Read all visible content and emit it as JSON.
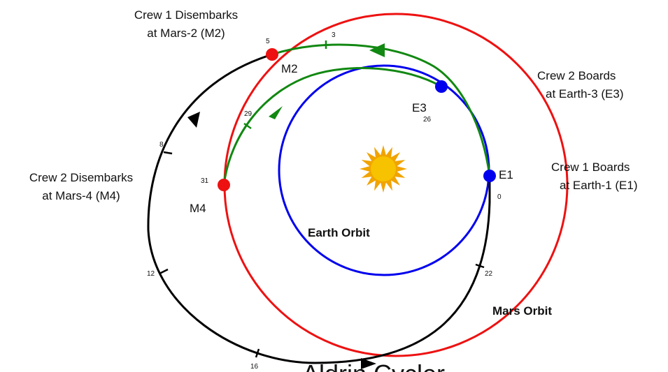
{
  "colors": {
    "earth": "#0000ee",
    "mars": "#ee1111",
    "cycler": "#000000",
    "taxi": "#118811",
    "sun_core": "#f7c200",
    "sun_rays": "#f0a400"
  },
  "orbits": {
    "earth_label": "Earth Orbit",
    "mars_label": "Mars Orbit"
  },
  "nodes": {
    "e1": "E1",
    "e3": "E3",
    "m2": "M2",
    "m4": "M4"
  },
  "captions": {
    "crew1_boards": [
      "Crew 1 Boards",
      "at Earth-1 (E1)"
    ],
    "crew2_boards": [
      "Crew 2 Boards",
      "at Earth-3 (E3)"
    ],
    "crew1_disembarks": [
      "Crew 1 Disembarks",
      "at Mars-2 (M2)"
    ],
    "crew2_disembarks": [
      "Crew 2 Disembarks",
      "at Mars-4 (M4)"
    ]
  },
  "tick_labels": {
    "t0": "0",
    "t3": "3",
    "t5": "5",
    "t8": "8",
    "t12": "12",
    "t16": "16",
    "t22": "22",
    "t26": "26",
    "t29": "29",
    "t31": "31"
  },
  "bottom_title": "Aldrin Cycler"
}
